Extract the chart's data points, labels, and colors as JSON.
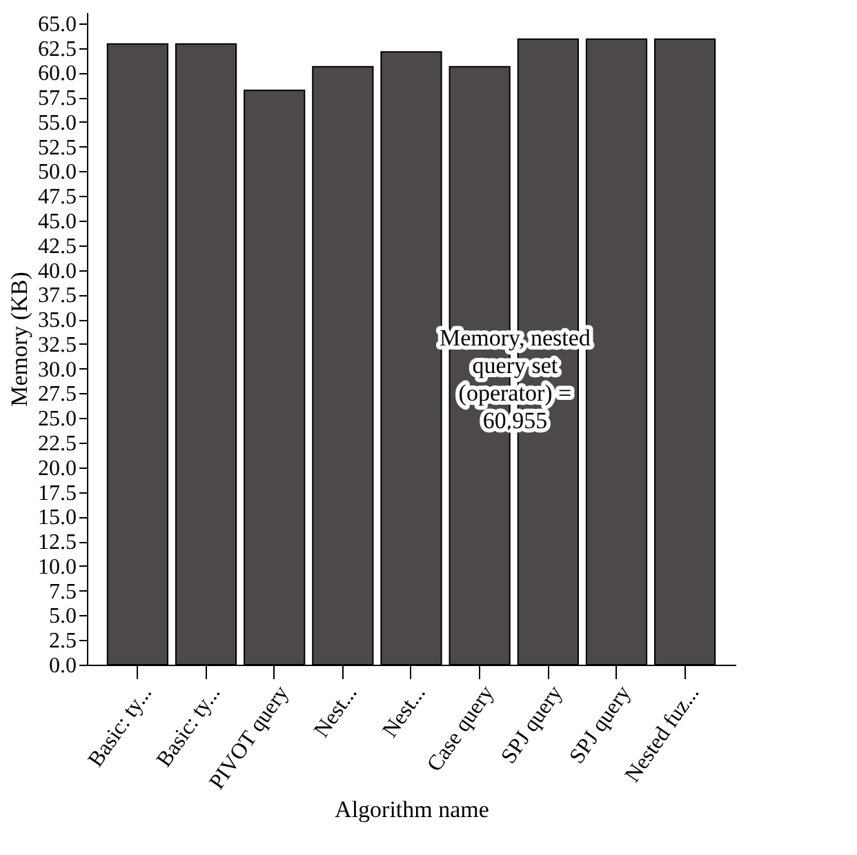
{
  "chart_data": {
    "type": "bar",
    "xlabel": "Algorithm name",
    "ylabel": "Memory (KB)",
    "categories": [
      "Basic: ty...",
      "Basic: ty...",
      "PIVOT query",
      "Nest...",
      "Nest...",
      "Case query",
      "SPJ query",
      "SPJ query",
      "Nested fuz..."
    ],
    "values": [
      62.9,
      62.9,
      58.2,
      60.6,
      62.1,
      60.6,
      63.4,
      63.4,
      63.4
    ],
    "color": "#4d4948",
    "ylim": [
      0,
      66.1
    ],
    "yticks": [
      {
        "value": 0,
        "label": "0.0"
      },
      {
        "value": 2.5,
        "label": "2.5"
      },
      {
        "value": 5,
        "label": "5.0"
      },
      {
        "value": 7.5,
        "label": "7.5"
      },
      {
        "value": 10,
        "label": "10.0"
      },
      {
        "value": 12.5,
        "label": "12.5"
      },
      {
        "value": 15,
        "label": "15.0"
      },
      {
        "value": 17.5,
        "label": "17.5"
      },
      {
        "value": 20,
        "label": "20.0"
      },
      {
        "value": 22.5,
        "label": "22.5"
      },
      {
        "value": 25,
        "label": "25.0"
      },
      {
        "value": 27.5,
        "label": "27.5"
      },
      {
        "value": 30,
        "label": "30.0"
      },
      {
        "value": 32.5,
        "label": "32.5"
      },
      {
        "value": 35,
        "label": "35.0"
      },
      {
        "value": 37.5,
        "label": "37.5"
      },
      {
        "value": 40,
        "label": "40.0"
      },
      {
        "value": 42.5,
        "label": "42.5"
      },
      {
        "value": 45,
        "label": "45.0"
      },
      {
        "value": 47.5,
        "label": "47.5"
      },
      {
        "value": 50,
        "label": "50.0"
      },
      {
        "value": 52.5,
        "label": "52.5"
      },
      {
        "value": 55,
        "label": "55.0"
      },
      {
        "value": 57.5,
        "label": "57.5"
      },
      {
        "value": 60,
        "label": "60.0"
      },
      {
        "value": 62.5,
        "label": "62.5"
      },
      {
        "value": 65,
        "label": "65.0"
      }
    ],
    "grid": false,
    "annotations": [
      "Memory, nested query set (operator) = 60.955"
    ]
  }
}
